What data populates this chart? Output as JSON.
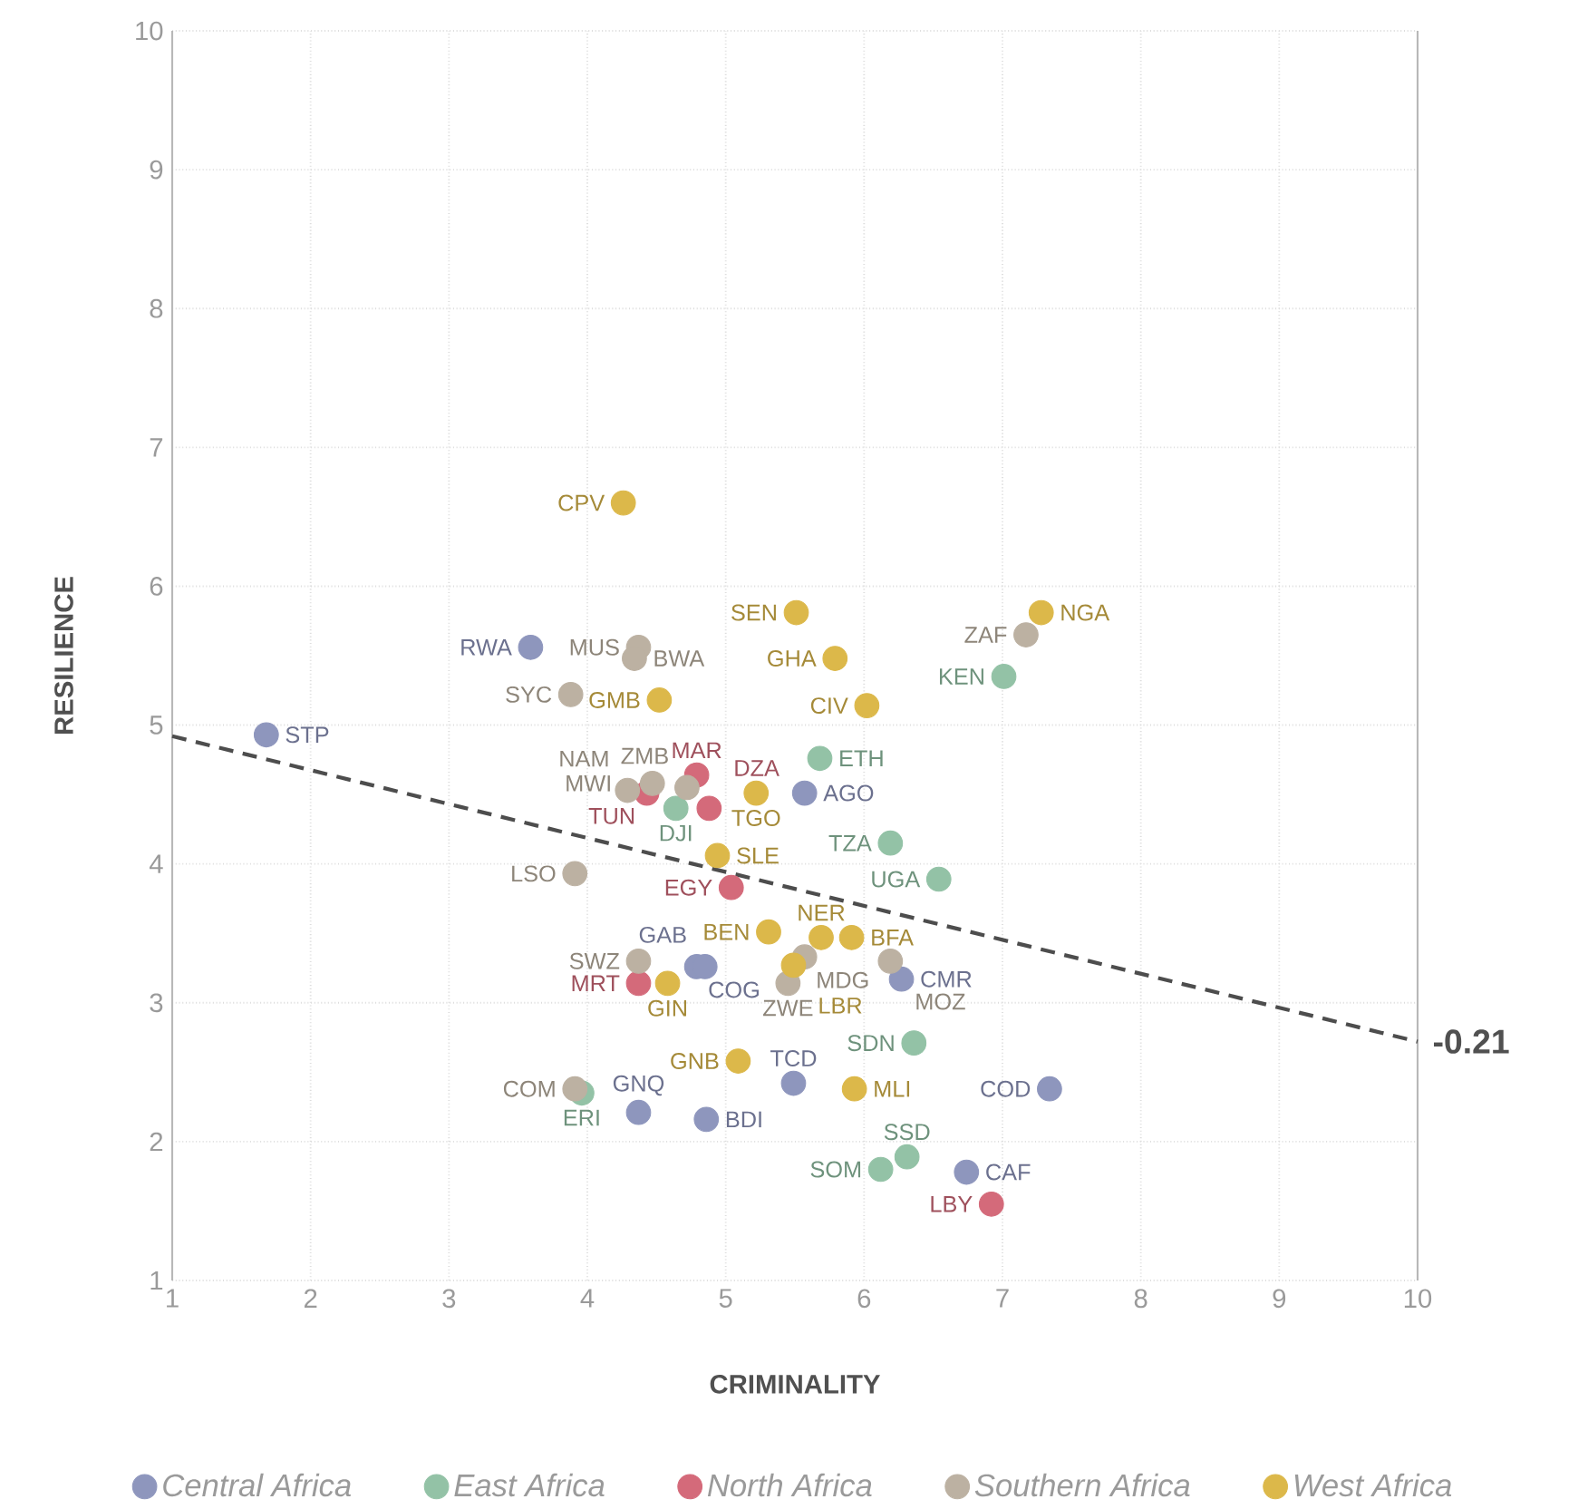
{
  "chart_data": {
    "type": "scatter",
    "xlabel": "CRIMINALITY",
    "ylabel": "RESILIENCE",
    "xlim": [
      1,
      10
    ],
    "ylim": [
      1,
      10
    ],
    "xticks": [
      1,
      2,
      3,
      4,
      5,
      6,
      7,
      8,
      9,
      10
    ],
    "yticks": [
      1,
      2,
      3,
      4,
      5,
      6,
      7,
      8,
      9,
      10
    ],
    "grid": true,
    "legend": "bottom",
    "marker": "circle",
    "series": [
      {
        "name": "Central Africa",
        "color": "#8e96bd",
        "x": [
          1.68,
          3.59,
          4.79,
          4.85,
          5.57,
          6.27,
          5.49,
          4.37,
          4.86,
          7.34,
          6.74
        ],
        "values": [
          4.93,
          5.56,
          3.26,
          3.26,
          4.51,
          3.17,
          2.42,
          2.21,
          2.16,
          2.38,
          1.78
        ],
        "value_labels": [
          "STP",
          "RWA",
          "COG",
          "GAB",
          "AGO",
          "CMR",
          "TCD",
          "GNQ",
          "BDI",
          "COD",
          "CAF"
        ]
      },
      {
        "name": "East Africa",
        "color": "#93c2a6",
        "x": [
          7.01,
          5.68,
          4.64,
          6.19,
          6.54,
          6.36,
          3.96,
          6.31,
          6.12
        ],
        "values": [
          5.35,
          4.76,
          4.4,
          4.15,
          3.89,
          2.71,
          2.35,
          1.89,
          1.8
        ],
        "value_labels": [
          "KEN",
          "ETH",
          "DJI",
          "TZA",
          "UGA",
          "SDN",
          "ERI",
          "SSD",
          "SOM"
        ]
      },
      {
        "name": "North Africa",
        "color": "#d46a7a",
        "x": [
          4.79,
          4.43,
          4.88,
          5.04,
          4.37,
          6.92
        ],
        "values": [
          4.64,
          4.51,
          4.4,
          3.83,
          3.14,
          1.55
        ],
        "value_labels": [
          "MAR",
          "TUN",
          "DZA",
          "EGY",
          "MRT",
          "LBY"
        ]
      },
      {
        "name": "Southern Africa",
        "color": "#bcb1a2",
        "x": [
          7.17,
          4.37,
          4.34,
          3.88,
          4.47,
          4.29,
          4.72,
          3.91,
          4.37,
          5.57,
          6.19,
          5.45,
          3.91
        ],
        "values": [
          5.65,
          5.56,
          5.48,
          5.22,
          4.58,
          4.53,
          4.55,
          3.93,
          3.3,
          3.33,
          3.3,
          3.14,
          2.38
        ],
        "value_labels": [
          "ZAF",
          "MUS",
          "BWA",
          "SYC",
          "MWI",
          "NAM",
          "ZMB",
          "LSO",
          "SWZ",
          "MDG",
          "MOZ",
          "ZWE",
          "COM"
        ]
      },
      {
        "name": "West Africa",
        "color": "#dcb84a",
        "x": [
          4.26,
          5.51,
          5.79,
          6.02,
          7.28,
          4.52,
          5.22,
          4.94,
          5.31,
          5.69,
          5.91,
          5.49,
          4.58,
          5.09,
          5.93
        ],
        "values": [
          6.6,
          5.81,
          5.48,
          5.14,
          5.81,
          5.18,
          4.51,
          4.06,
          3.51,
          3.47,
          3.47,
          3.27,
          3.14,
          2.58,
          2.38
        ],
        "value_labels": [
          "CPV",
          "SEN",
          "GHA",
          "CIV",
          "NGA",
          "GMB",
          "TGO",
          "SLE",
          "BEN",
          "NER",
          "BFA",
          "LBR",
          "GIN",
          "GNB",
          "MLI"
        ]
      },
      {
        "type": "line",
        "color": "#4d4d4d",
        "line_style": "dashed",
        "marker": "none",
        "x": [
          1,
          10
        ],
        "values": [
          4.92,
          2.72
        ]
      }
    ],
    "annotations": [
      {
        "text": "-0.21",
        "x": 10,
        "y": 2.72
      }
    ]
  }
}
